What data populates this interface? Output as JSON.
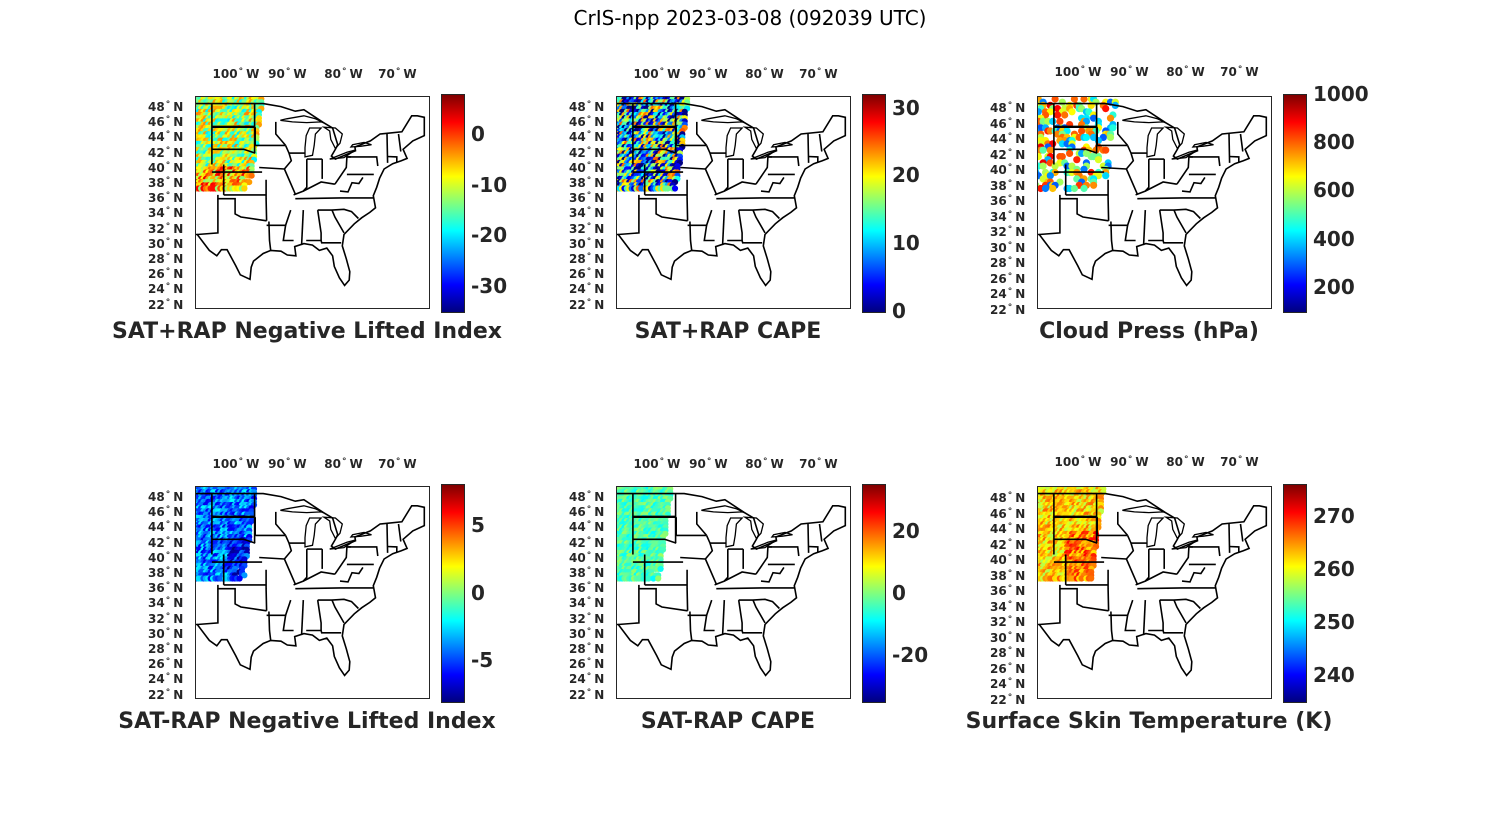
{
  "title": "CrIS-npp 2023-03-08 (092039 UTC)",
  "lon_ticks": [
    "100",
    "90",
    "80",
    "70"
  ],
  "lon_suffix": "W",
  "lat_ticks": [
    "48",
    "46",
    "44",
    "42",
    "40",
    "38",
    "36",
    "34",
    "32",
    "30",
    "28",
    "26",
    "24",
    "22"
  ],
  "lat_suffix": "N",
  "degree_symbol": "°",
  "panels": [
    {
      "title": "SAT+RAP Negative Lifted Index",
      "cbar_ticks": [
        "0",
        "-10",
        "-20",
        "-30"
      ],
      "cmin": -35,
      "cmax": 8
    },
    {
      "title": "SAT+RAP CAPE",
      "cbar_ticks": [
        "30",
        "20",
        "10",
        "0"
      ],
      "cmin": 0,
      "cmax": 32
    },
    {
      "title": "Cloud Press (hPa)",
      "cbar_ticks": [
        "1000",
        "800",
        "600",
        "400",
        "200"
      ],
      "cmin": 100,
      "cmax": 1000
    },
    {
      "title": "SAT-RAP Negative Lifted Index",
      "cbar_ticks": [
        "5",
        "0",
        "-5"
      ],
      "cmin": -8,
      "cmax": 8
    },
    {
      "title": "SAT-RAP CAPE",
      "cbar_ticks": [
        "20",
        "0",
        "-20"
      ],
      "cmin": -35,
      "cmax": 35
    },
    {
      "title": "Surface Skin Temperature (K)",
      "cbar_ticks": [
        "270",
        "260",
        "250",
        "240"
      ],
      "cmin": 235,
      "cmax": 276
    }
  ],
  "colormap": "jet",
  "jet_stops": [
    "#00007f",
    "#0000ff",
    "#007fff",
    "#00ffff",
    "#7fff7f",
    "#ffff00",
    "#ff7f00",
    "#ff0000",
    "#7f0000"
  ]
}
